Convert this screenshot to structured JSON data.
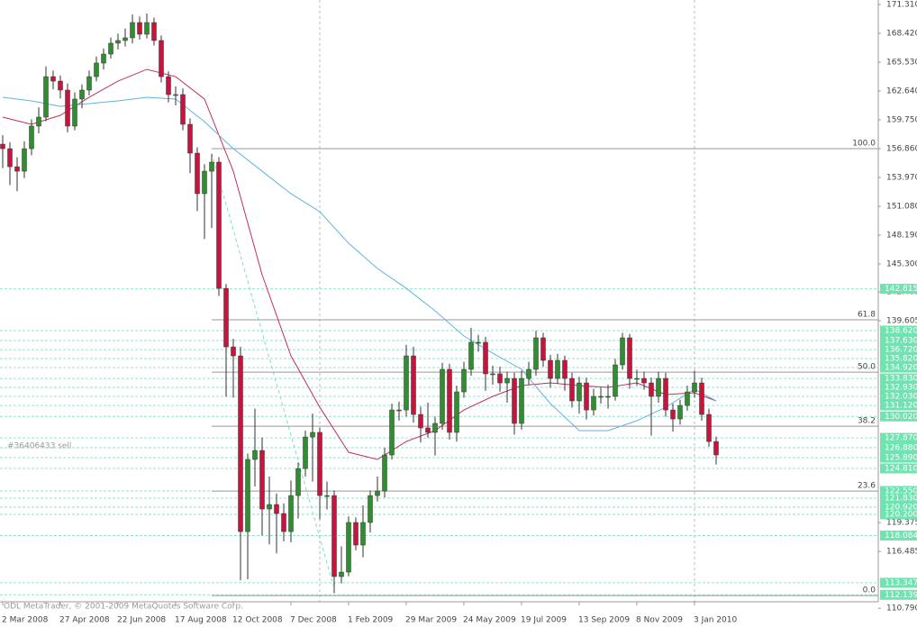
{
  "chart_data": {
    "type": "candlestick",
    "categories": [
      "2 Mar 2008",
      null,
      null,
      null,
      null,
      null,
      null,
      null,
      "27 Apr 2008",
      null,
      null,
      null,
      null,
      null,
      null,
      null,
      "22 Jun 2008",
      null,
      null,
      null,
      null,
      null,
      null,
      null,
      "17 Aug 2008",
      null,
      null,
      null,
      null,
      null,
      null,
      null,
      "12 Oct 2008",
      null,
      null,
      null,
      null,
      null,
      null,
      null,
      "7 Dec 2008",
      null,
      null,
      null,
      null,
      null,
      null,
      null,
      "1 Feb 2009",
      null,
      null,
      null,
      null,
      null,
      null,
      null,
      "29 Mar 2009",
      null,
      null,
      null,
      null,
      null,
      null,
      null,
      "24 May 2009",
      null,
      null,
      null,
      null,
      null,
      null,
      null,
      "19 Jul 2009",
      null,
      null,
      null,
      null,
      null,
      null,
      null,
      "13 Sep 2009",
      null,
      null,
      null,
      null,
      null,
      null,
      null,
      "8 Nov 2009",
      null,
      null,
      null,
      null,
      null,
      null,
      null,
      "3 Jan 2010",
      null,
      null,
      null
    ],
    "open": [
      157.31,
      156.86,
      155.05,
      154.6,
      156.86,
      159.12,
      160.02,
      164.08,
      163.63,
      162.73,
      159.12,
      161.83,
      162.73,
      164.08,
      165.44,
      166.34,
      167.43,
      167.7,
      167.97,
      169.5,
      168.33,
      169.5,
      167.7,
      164.08,
      162.28,
      162.28,
      159.3,
      156.41,
      152.35,
      154.6,
      155.51,
      142.86,
      136.99,
      136.09,
      118.48,
      125.71,
      126.61,
      120.74,
      121.19,
      120.29,
      118.48,
      122.09,
      124.8,
      127.96,
      128.42,
      122.09,
      122.09,
      113.97,
      114.42,
      119.39,
      117.13,
      119.39,
      122.09,
      122.55,
      126.16,
      130.67,
      130.67,
      136.09,
      130.22,
      128.87,
      128.42,
      129.32,
      134.74,
      128.42,
      132.48,
      134.74,
      137.45,
      137.45,
      134.29,
      134.29,
      133.38,
      133.83,
      129.32,
      133.83,
      134.74,
      137.9,
      135.64,
      133.83,
      135.64,
      133.83,
      131.58,
      133.38,
      130.67,
      132.03,
      132.03,
      132.03,
      135.19,
      137.9,
      133.83,
      133.83,
      133.38,
      132.03,
      133.83,
      130.67,
      129.77,
      131.12,
      132.48,
      133.38,
      130.22,
      127.51
    ],
    "high": [
      158.2,
      157.5,
      156.0,
      157.6,
      159.8,
      161.0,
      165.1,
      164.7,
      164.2,
      163.4,
      162.5,
      163.3,
      164.7,
      166.1,
      166.9,
      168.0,
      168.4,
      168.9,
      170.3,
      170.1,
      170.4,
      170.0,
      168.2,
      164.6,
      163.1,
      162.9,
      159.9,
      157.0,
      155.3,
      156.3,
      156.0,
      143.3,
      137.8,
      137.0,
      126.3,
      130.8,
      127.9,
      124.0,
      122.3,
      121.3,
      123.6,
      125.4,
      128.6,
      130.3,
      128.9,
      123.5,
      122.6,
      117.0,
      120.0,
      119.9,
      121.1,
      122.6,
      124.0,
      126.9,
      131.3,
      131.5,
      137.2,
      137.0,
      131.0,
      131.4,
      130.0,
      135.4,
      135.3,
      133.1,
      135.5,
      138.9,
      138.2,
      138.0,
      135.1,
      135.0,
      134.5,
      134.4,
      134.6,
      135.5,
      138.6,
      138.4,
      136.2,
      136.3,
      136.1,
      134.4,
      134.0,
      133.9,
      132.8,
      132.9,
      133.2,
      135.8,
      138.4,
      138.3,
      134.7,
      134.5,
      133.9,
      134.5,
      134.4,
      131.3,
      131.7,
      133.1,
      134.6,
      133.9,
      130.8,
      128.0
    ],
    "low": [
      154.9,
      153.2,
      152.6,
      153.9,
      156.2,
      158.4,
      159.6,
      162.8,
      161.9,
      158.5,
      158.7,
      160.9,
      162.2,
      163.6,
      164.8,
      165.9,
      166.8,
      167.1,
      167.4,
      167.8,
      167.9,
      167.2,
      163.5,
      161.5,
      161.2,
      158.7,
      154.4,
      150.6,
      147.8,
      148.9,
      142.1,
      132.0,
      131.9,
      113.6,
      113.7,
      123.0,
      118.1,
      117.2,
      116.3,
      117.5,
      117.4,
      119.8,
      124.0,
      123.5,
      119.7,
      120.7,
      112.3,
      113.3,
      114.0,
      116.6,
      115.9,
      118.4,
      121.5,
      121.9,
      125.7,
      129.6,
      130.0,
      129.4,
      127.4,
      127.9,
      126.1,
      128.7,
      127.7,
      127.5,
      131.9,
      134.1,
      136.5,
      132.6,
      133.2,
      132.5,
      131.4,
      128.2,
      128.7,
      133.2,
      134.1,
      135.0,
      132.9,
      133.3,
      132.6,
      130.9,
      130.3,
      129.7,
      130.1,
      131.3,
      130.8,
      131.6,
      134.7,
      132.8,
      133.1,
      132.7,
      128.1,
      131.4,
      130.0,
      128.5,
      129.2,
      130.6,
      131.9,
      129.6,
      127.0,
      125.2
    ],
    "close": [
      156.86,
      155.05,
      154.6,
      156.86,
      159.12,
      160.02,
      164.08,
      163.63,
      162.73,
      159.12,
      161.83,
      162.73,
      164.08,
      165.44,
      166.34,
      167.43,
      167.7,
      167.97,
      169.5,
      168.33,
      169.5,
      167.7,
      164.08,
      162.28,
      162.28,
      159.3,
      156.41,
      152.35,
      154.6,
      155.51,
      142.86,
      136.99,
      136.09,
      118.48,
      125.71,
      126.61,
      120.74,
      121.19,
      120.29,
      118.48,
      122.09,
      124.8,
      127.96,
      128.42,
      122.09,
      122.09,
      113.97,
      114.42,
      119.39,
      117.13,
      119.39,
      122.09,
      122.55,
      126.16,
      130.67,
      130.67,
      136.09,
      130.22,
      128.87,
      128.42,
      129.32,
      134.74,
      128.42,
      132.48,
      134.74,
      137.45,
      137.45,
      134.29,
      134.29,
      133.38,
      133.83,
      129.32,
      133.83,
      134.74,
      137.9,
      135.64,
      133.83,
      135.64,
      133.83,
      131.58,
      133.38,
      130.67,
      132.03,
      132.03,
      132.03,
      135.19,
      137.9,
      133.83,
      133.83,
      133.38,
      132.03,
      133.83,
      130.67,
      129.77,
      131.12,
      132.48,
      133.38,
      130.22,
      127.51,
      126.16
    ],
    "up_color": "#2f8f2f",
    "down_color": "#c8143c",
    "moving_averages": [
      {
        "color": "#c0305a",
        "x": [
          0,
          4,
          8,
          12,
          16,
          20,
          24,
          28,
          32,
          36,
          40,
          44,
          48,
          52,
          56,
          60,
          64,
          68,
          72,
          76,
          80,
          84,
          88,
          92,
          96,
          99
        ],
        "values": [
          160.02,
          159.3,
          160.2,
          162.01,
          163.63,
          164.81,
          164.08,
          161.83,
          154.6,
          144.22,
          136.09,
          130.94,
          126.43,
          125.71,
          127.51,
          128.6,
          130.67,
          132.03,
          133.11,
          133.38,
          133.11,
          132.93,
          133.38,
          132.21,
          132.39,
          131.58
        ]
      },
      {
        "color": "#5fb4e0",
        "x": [
          0,
          4,
          8,
          12,
          16,
          20,
          24,
          28,
          32,
          36,
          40,
          44,
          48,
          52,
          56,
          60,
          64,
          68,
          72,
          76,
          80,
          84,
          88,
          92,
          96,
          99
        ],
        "values": [
          162.01,
          161.65,
          161.1,
          161.38,
          161.65,
          162.01,
          161.83,
          159.57,
          156.86,
          154.6,
          152.35,
          150.54,
          147.38,
          144.85,
          142.86,
          140.61,
          138.08,
          136.36,
          134.74,
          131.31,
          128.6,
          128.6,
          129.59,
          130.94,
          132.75,
          131.58
        ]
      }
    ],
    "ylim": [
      110.36,
      171.76
    ],
    "yticks": [
      {
        "value": 171.31,
        "label": "171.310"
      },
      {
        "value": 168.42,
        "label": "168.420"
      },
      {
        "value": 165.53,
        "label": "165.530"
      },
      {
        "value": 162.64,
        "label": "162.640"
      },
      {
        "value": 159.75,
        "label": "159.750"
      },
      {
        "value": 156.86,
        "label": "156.860"
      },
      {
        "value": 153.97,
        "label": "153.970"
      },
      {
        "value": 151.08,
        "label": "151.080"
      },
      {
        "value": 148.19,
        "label": "148.190"
      },
      {
        "value": 145.3,
        "label": "145.300"
      },
      {
        "value": 142.495,
        "label": "142.495"
      },
      {
        "value": 139.605,
        "label": "139.605"
      },
      {
        "value": 119.375,
        "label": "119.375"
      },
      {
        "value": 116.485,
        "label": "116.485"
      },
      {
        "value": 110.79,
        "label": "110.790"
      }
    ],
    "levels": [
      {
        "value": 142.815,
        "label": "142.815"
      },
      {
        "value": 138.62,
        "label": "138.620"
      },
      {
        "value": 137.63,
        "label": "137.630"
      },
      {
        "value": 136.72,
        "label": "136.720"
      },
      {
        "value": 135.82,
        "label": "135.820"
      },
      {
        "value": 134.92,
        "label": "134.920"
      },
      {
        "value": 133.83,
        "label": "133.830"
      },
      {
        "value": 132.93,
        "label": "132.930"
      },
      {
        "value": 132.03,
        "label": "132.030"
      },
      {
        "value": 131.12,
        "label": "131.120"
      },
      {
        "value": 130.02,
        "label": "130.020"
      },
      {
        "value": 127.87,
        "label": "127.870"
      },
      {
        "value": 126.88,
        "label": "126.880"
      },
      {
        "value": 125.89,
        "label": "125.890"
      },
      {
        "value": 124.81,
        "label": "124.810"
      },
      {
        "value": 122.55,
        "label": "122.550"
      },
      {
        "value": 121.83,
        "label": "121.830"
      },
      {
        "value": 120.92,
        "label": "120.920"
      },
      {
        "value": 120.2,
        "label": "120.200"
      },
      {
        "value": 118.084,
        "label": "118.084"
      },
      {
        "value": 113.347,
        "label": "113.347"
      },
      {
        "value": 112.139,
        "label": "112.139"
      }
    ],
    "fib_levels": [
      {
        "value": 156.86,
        "label": "100.0"
      },
      {
        "value": 139.7,
        "label": "61.8"
      },
      {
        "value": 134.46,
        "label": "50.0"
      },
      {
        "value": 129.04,
        "label": "38.2"
      },
      {
        "value": 122.54,
        "label": "23.6"
      },
      {
        "value": 112.06,
        "label": "0.0"
      }
    ],
    "annotation": "#36406433 sell",
    "footer": "ODL MetaTrader, © 2001-2009 MetaQuotes Software Corp."
  }
}
